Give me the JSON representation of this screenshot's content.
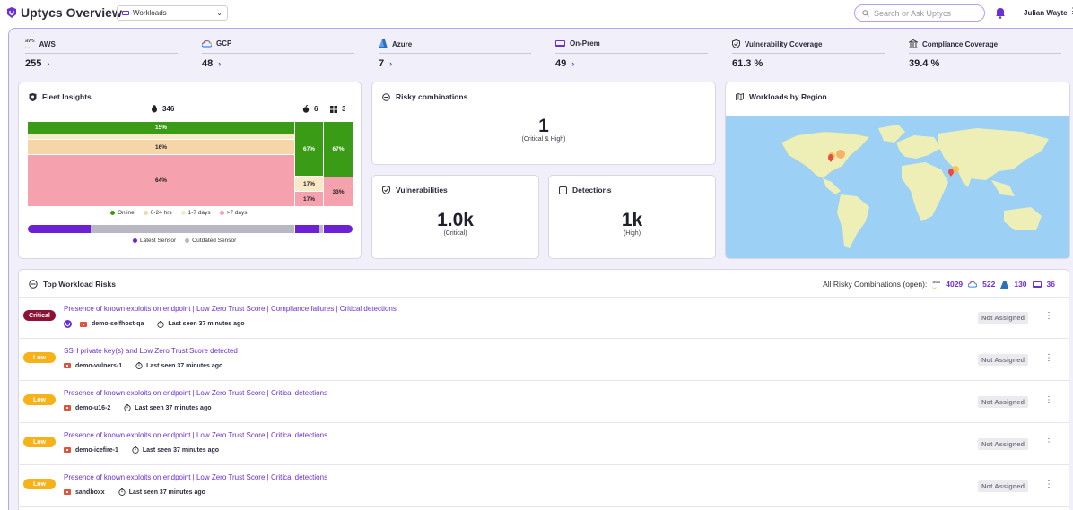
{
  "app": {
    "title": "Uptycs Overview"
  },
  "workload_select": {
    "value": "Workloads"
  },
  "search": {
    "placeholder": "Search or Ask Uptycs"
  },
  "user": {
    "name": "Julian Wayte"
  },
  "stats": [
    {
      "label": "AWS",
      "value": "255",
      "icon": "aws-icon"
    },
    {
      "label": "GCP",
      "value": "48",
      "icon": "gcp-icon"
    },
    {
      "label": "Azure",
      "value": "7",
      "icon": "azure-icon"
    },
    {
      "label": "On-Prem",
      "value": "49",
      "icon": "laptop-icon"
    },
    {
      "label": "Vulnerability Coverage",
      "value": "61.3 %",
      "icon": "shield-icon"
    },
    {
      "label": "Compliance Coverage",
      "value": "39.4 %",
      "icon": "bank-icon"
    }
  ],
  "fleet": {
    "title": "Fleet Insights",
    "os_counts": {
      "linux": "346",
      "apple": "6",
      "windows": "3"
    },
    "blocks": {
      "linux": [
        "15%",
        "16%",
        "64%"
      ],
      "apple": [
        "67%",
        "17%",
        "17%"
      ],
      "windows": [
        "67%",
        "33%"
      ]
    },
    "legend": [
      "Online",
      "0-24 hrs",
      "1-7 days",
      ">7 days"
    ],
    "sensor_legend": [
      "Latest Sensor",
      "Outdated Sensor"
    ],
    "colors": {
      "online": "#3a9b16",
      "recent": "#f6d6a8",
      "week": "#f9e9c6",
      "old": "#f6a1ae",
      "latest": "#6d21d6",
      "outdated": "#b9b8c2"
    }
  },
  "risky": {
    "title": "Risky combinations",
    "value": "1",
    "caption": "(Critical & High)"
  },
  "vulns": {
    "title": "Vulnerabilities",
    "value": "1.0k",
    "caption": "(Critical)"
  },
  "detections": {
    "title": "Detections",
    "value": "1k",
    "caption": "(High)"
  },
  "region": {
    "title": "Workloads by Region"
  },
  "top_risks": {
    "title": "Top Workload Risks",
    "all_label": "All Risky Combinations (open):",
    "counts": {
      "aws": "4029",
      "gcp": "522",
      "azure": "130",
      "onprem": "36"
    },
    "rows": [
      {
        "severity": "Critical",
        "title": "Presence of known exploits on endpoint | Low Zero Trust Score | Compliance failures | Critical detections",
        "host": "demo-selfhost-qa",
        "seen": "Last seen 37 minutes ago",
        "status": "Not Assigned"
      },
      {
        "severity": "Low",
        "title": "SSH private key(s) and Low Zero Trust Score detected",
        "host": "demo-vulners-1",
        "seen": "Last seen 37 minutes ago",
        "status": "Not Assigned"
      },
      {
        "severity": "Low",
        "title": "Presence of known exploits on endpoint | Low Zero Trust Score | Critical detections",
        "host": "demo-u16-2",
        "seen": "Last seen 37 minutes ago",
        "status": "Not Assigned"
      },
      {
        "severity": "Low",
        "title": "Presence of known exploits on endpoint | Low Zero Trust Score | Critical detections",
        "host": "demo-icefire-1",
        "seen": "Last seen 37 minutes ago",
        "status": "Not Assigned"
      },
      {
        "severity": "Low",
        "title": "Presence of known exploits on endpoint | Low Zero Trust Score | Critical detections",
        "host": "sandboxx",
        "seen": "Last seen 37 minutes ago",
        "status": "Not Assigned"
      }
    ]
  }
}
